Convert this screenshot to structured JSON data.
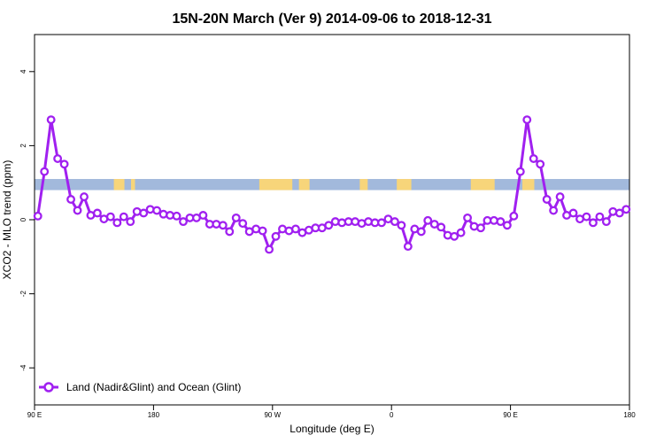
{
  "chart_data": {
    "type": "line",
    "title": "15N-20N March (Ver 9)   2014-09-06 to 2018-12-31",
    "xlabel": "Longitude (deg E)",
    "ylabel": "XCO2 - MLO trend (ppm)",
    "xlim": [
      0,
      450
    ],
    "ylim": [
      -5,
      5
    ],
    "x_tick_values": [
      0,
      90,
      180,
      270,
      360,
      450
    ],
    "x_tick_labels": [
      "90 E",
      "180",
      "90 W",
      "0",
      "90 E",
      "180"
    ],
    "y_tick_values": [
      -4,
      -2,
      0,
      2,
      4
    ],
    "y_tick_labels": [
      "-4",
      "-2",
      "0",
      "2",
      "4"
    ],
    "grid": false,
    "legend_position": "bottom-left",
    "colors": {
      "series": "#a020f0",
      "ocean_band": "#a2b9dc",
      "land_band": "#f7d57a",
      "marker_fill": "#ffffff"
    },
    "map_band": {
      "y_range": [
        0.8,
        1.1
      ],
      "land_segments": [
        [
          60,
          68
        ],
        [
          73,
          76
        ],
        [
          170,
          195
        ],
        [
          200,
          208
        ],
        [
          246,
          252
        ],
        [
          274,
          285
        ],
        [
          330,
          348
        ],
        [
          369,
          378
        ]
      ]
    },
    "series": [
      {
        "name": "Land (Nadir&Glint) and Ocean (Glint)",
        "x": [
          2.5,
          7.5,
          12.5,
          17.5,
          22.5,
          27.5,
          32.5,
          37.5,
          42.5,
          47.5,
          52.5,
          57.5,
          62.5,
          67.5,
          72.5,
          77.5,
          82.5,
          87.5,
          92.5,
          97.5,
          102.5,
          107.5,
          112.5,
          117.5,
          122.5,
          127.5,
          132.5,
          137.5,
          142.5,
          147.5,
          152.5,
          157.5,
          162.5,
          167.5,
          172.5,
          177.5,
          182.5,
          187.5,
          192.5,
          197.5,
          202.5,
          207.5,
          212.5,
          217.5,
          222.5,
          227.5,
          232.5,
          237.5,
          242.5,
          247.5,
          252.5,
          257.5,
          262.5,
          267.5,
          272.5,
          277.5,
          282.5,
          287.5,
          292.5,
          297.5,
          302.5,
          307.5,
          312.5,
          317.5,
          322.5,
          327.5,
          332.5,
          337.5,
          342.5,
          347.5,
          352.5,
          357.5,
          362.5,
          367.5,
          372.5,
          377.5,
          382.5,
          387.5,
          392.5,
          397.5,
          402.5,
          407.5,
          412.5,
          417.5,
          422.5,
          427.5,
          432.5,
          437.5,
          442.5,
          447.5
        ],
        "y": [
          0.1,
          1.3,
          2.7,
          1.65,
          1.5,
          0.55,
          0.25,
          0.62,
          0.12,
          0.18,
          0.02,
          0.08,
          -0.08,
          0.08,
          -0.05,
          0.22,
          0.18,
          0.28,
          0.25,
          0.15,
          0.12,
          0.1,
          -0.05,
          0.05,
          0.05,
          0.12,
          -0.12,
          -0.12,
          -0.15,
          -0.32,
          0.05,
          -0.1,
          -0.32,
          -0.25,
          -0.3,
          -0.8,
          -0.45,
          -0.25,
          -0.3,
          -0.25,
          -0.35,
          -0.28,
          -0.22,
          -0.22,
          -0.15,
          -0.05,
          -0.08,
          -0.05,
          -0.05,
          -0.1,
          -0.05,
          -0.08,
          -0.08,
          0.02,
          -0.05,
          -0.15,
          -0.72,
          -0.25,
          -0.32,
          -0.02,
          -0.12,
          -0.2,
          -0.42,
          -0.45,
          -0.35,
          0.05,
          -0.18,
          -0.22,
          -0.02,
          -0.02,
          -0.05,
          -0.15,
          0.1,
          1.3,
          2.7,
          1.65,
          1.5,
          0.55,
          0.25,
          0.62,
          0.12,
          0.18,
          0.02,
          0.08,
          -0.08,
          0.08,
          -0.05,
          0.22,
          0.18,
          0.28
        ]
      }
    ]
  }
}
